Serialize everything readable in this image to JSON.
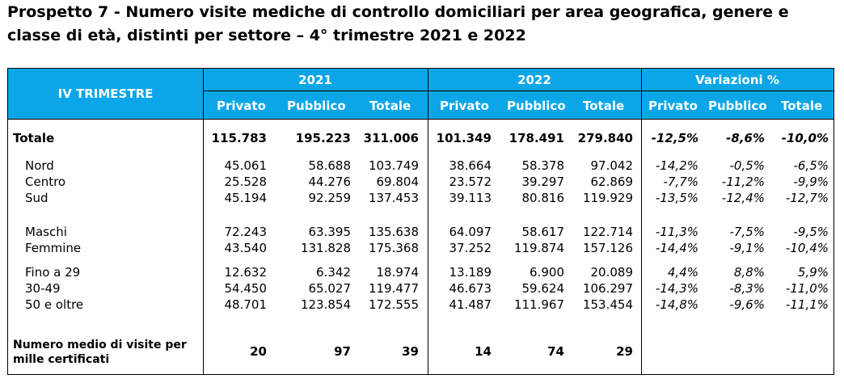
{
  "title": "Prospetto 7 - Numero visite mediche di controllo domiciliari per area geografica, genere e classe di età, distinti per settore – 4° trimestre 2021 e 2022",
  "header": {
    "row_label": "IV TRIMESTRE",
    "groups": [
      "2021",
      "2022",
      "Variazioni %"
    ],
    "subcols": [
      "Privato",
      "Pubblico",
      "Totale",
      "Privato",
      "Pubblico",
      "Totale",
      "Privato",
      "Pubblico",
      "Totale"
    ]
  },
  "rows": [
    {
      "label": "Totale",
      "values": [
        "115.783",
        "195.223",
        "311.006",
        "101.349",
        "178.491",
        "279.840",
        "-12,5%",
        "-8,6%",
        "-10,0%"
      ]
    },
    {
      "label": "Nord",
      "values": [
        "45.061",
        "58.688",
        "103.749",
        "38.664",
        "58.378",
        "97.042",
        "-14,2%",
        "-0,5%",
        "-6,5%"
      ]
    },
    {
      "label": "Centro",
      "values": [
        "25.528",
        "44.276",
        "69.804",
        "23.572",
        "39.297",
        "62.869",
        "-7,7%",
        "-11,2%",
        "-9,9%"
      ]
    },
    {
      "label": "Sud",
      "values": [
        "45.194",
        "92.259",
        "137.453",
        "39.113",
        "80.816",
        "119.929",
        "-13,5%",
        "-12,4%",
        "-12,7%"
      ]
    },
    {
      "label": "Maschi",
      "values": [
        "72.243",
        "63.395",
        "135.638",
        "64.097",
        "58.617",
        "122.714",
        "-11,3%",
        "-7,5%",
        "-9,5%"
      ]
    },
    {
      "label": "Femmine",
      "values": [
        "43.540",
        "131.828",
        "175.368",
        "37.252",
        "119.874",
        "157.126",
        "-14,4%",
        "-9,1%",
        "-10,4%"
      ]
    },
    {
      "label": "Fino a 29",
      "values": [
        "12.632",
        "6.342",
        "18.974",
        "13.189",
        "6.900",
        "20.089",
        "4,4%",
        "8,8%",
        "5,9%"
      ]
    },
    {
      "label": "30-49",
      "values": [
        "54.450",
        "65.027",
        "119.477",
        "46.673",
        "59.624",
        "106.297",
        "-14,3%",
        "-8,3%",
        "-11,0%"
      ]
    },
    {
      "label": "50 e oltre",
      "values": [
        "48.701",
        "123.854",
        "172.555",
        "41.487",
        "111.967",
        "153.454",
        "-14,8%",
        "-9,6%",
        "-11,1%"
      ]
    }
  ],
  "average_row": {
    "label_line1": "Numero medio di visite per",
    "label_line2": "mille certificati",
    "values": [
      "20",
      "97",
      "39",
      "14",
      "74",
      "29"
    ]
  },
  "colors": {
    "header_bg": "#0aa6e8",
    "header_text": "#ffffff"
  }
}
